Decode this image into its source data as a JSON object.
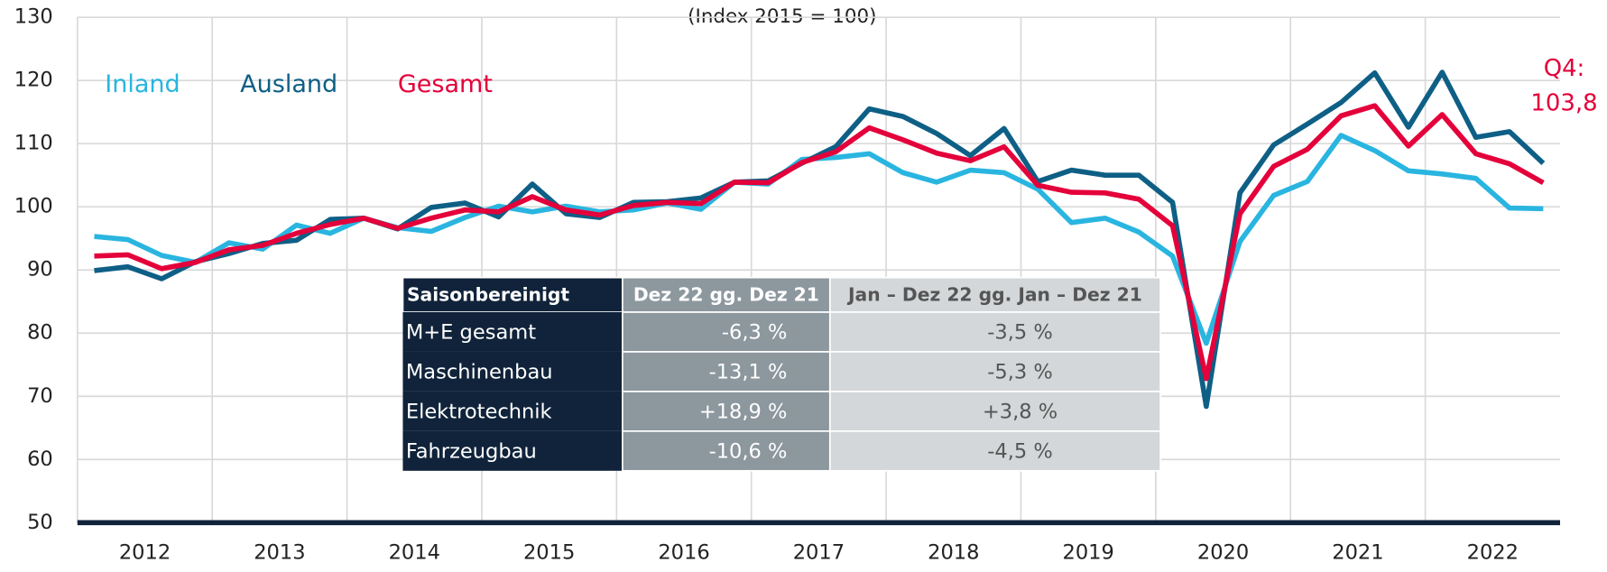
{
  "chart_data": {
    "type": "line",
    "subtitle": "(Index 2015 = 100)",
    "categories": [
      null,
      "2012",
      null,
      null,
      null,
      "2013",
      null,
      null,
      null,
      "2014",
      null,
      null,
      null,
      "2015",
      null,
      null,
      null,
      "2016",
      null,
      null,
      null,
      "2017",
      null,
      null,
      null,
      "2018",
      null,
      null,
      null,
      "2019",
      null,
      null,
      null,
      "2020",
      null,
      null,
      null,
      "2021",
      null,
      null,
      null,
      "2022",
      null,
      null
    ],
    "series": [
      {
        "name": "Inland",
        "color": "#29b5e0",
        "values": [
          95.3,
          94.8,
          92.3,
          91.2,
          94.3,
          93.3,
          97.1,
          95.8,
          98.2,
          96.7,
          96.1,
          98.3,
          100.1,
          99.2,
          100.1,
          99.2,
          99.5,
          100.6,
          99.6,
          103.9,
          103.6,
          107.5,
          107.8,
          108.4,
          105.4,
          103.9,
          105.8,
          105.4,
          102.8,
          97.5,
          98.2,
          96.0,
          92.2,
          78.4,
          94.5,
          101.8,
          104.0,
          111.3,
          108.9,
          105.7,
          105.2,
          104.5,
          99.8,
          99.7
        ]
      },
      {
        "name": "Ausland",
        "color": "#0e5f86",
        "values": [
          89.9,
          90.5,
          88.6,
          91.3,
          92.6,
          94.2,
          94.7,
          98.0,
          98.2,
          96.5,
          99.9,
          100.6,
          98.4,
          103.6,
          98.9,
          98.3,
          100.7,
          100.8,
          101.4,
          103.9,
          104.1,
          106.9,
          109.5,
          115.5,
          114.3,
          111.6,
          108.1,
          112.4,
          104.0,
          105.8,
          105.0,
          105.0,
          100.7,
          68.4,
          102.2,
          109.8,
          113.1,
          116.5,
          121.2,
          112.6,
          121.3,
          111.0,
          111.9,
          106.9
        ]
      },
      {
        "name": "Gesamt",
        "color": "#e4003a",
        "values": [
          92.2,
          92.4,
          90.2,
          91.2,
          93.2,
          93.9,
          95.8,
          97.2,
          98.2,
          96.6,
          98.2,
          99.5,
          99.2,
          101.6,
          99.5,
          98.7,
          100.2,
          100.7,
          100.5,
          103.9,
          103.8,
          107.0,
          108.7,
          112.5,
          110.6,
          108.5,
          107.3,
          109.5,
          103.4,
          102.3,
          102.2,
          101.2,
          97.0,
          72.8,
          98.9,
          106.4,
          109.1,
          114.4,
          116.0,
          109.6,
          114.6,
          108.4,
          106.8,
          103.8
        ]
      }
    ],
    "annotation": [
      "Q4:",
      "103,8"
    ],
    "ylim": [
      50,
      130
    ],
    "yticks": [
      50,
      60,
      70,
      80,
      90,
      100,
      110,
      120,
      130
    ],
    "grid": true,
    "table": {
      "header": [
        "Saisonbereinigt",
        "Dez 22 gg. Dez 21",
        "Jan – Dez 22 gg. Jan – Dez 21"
      ],
      "rows": [
        [
          "M+E gesamt",
          "-6,3 %",
          "-3,5 %"
        ],
        [
          "Maschinenbau",
          "-13,1 %",
          "-5,3 %"
        ],
        [
          "Elektrotechnik",
          "+18,9 %",
          "+3,8 %"
        ],
        [
          "Fahrzeugbau",
          "-10,6 %",
          "-4,5 %"
        ]
      ]
    }
  }
}
